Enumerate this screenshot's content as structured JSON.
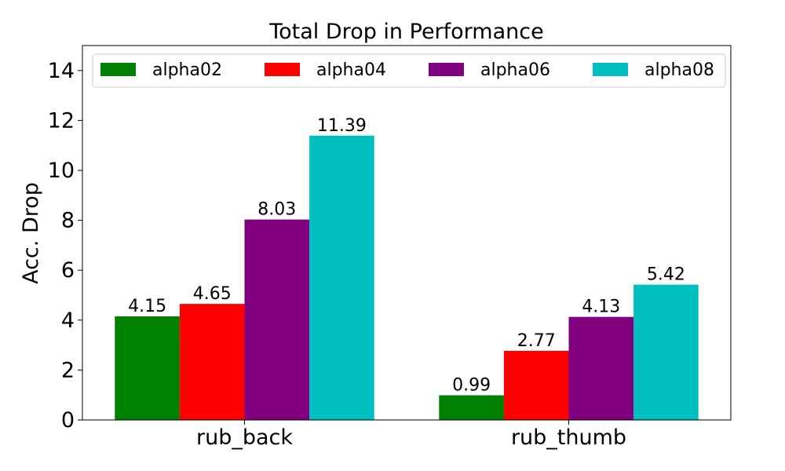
{
  "chart_data": {
    "type": "bar",
    "title": "Total Drop in Performance",
    "xlabel": "",
    "ylabel": "Acc. Drop",
    "categories": [
      "rub_back",
      "rub_thumb"
    ],
    "ylim": [
      0,
      15
    ],
    "yticks": [
      0,
      2,
      4,
      6,
      8,
      10,
      12,
      14
    ],
    "legend_position": "top",
    "grid": false,
    "series": [
      {
        "name": "alpha02",
        "color": "#008000",
        "values": [
          4.15,
          0.99
        ],
        "labels": [
          "4.15",
          "0.99"
        ]
      },
      {
        "name": "alpha04",
        "color": "#ff0000",
        "values": [
          4.65,
          2.77
        ],
        "labels": [
          "4.65",
          "2.77"
        ]
      },
      {
        "name": "alpha06",
        "color": "#800080",
        "values": [
          8.03,
          4.13
        ],
        "labels": [
          "8.03",
          "4.13"
        ]
      },
      {
        "name": "alpha08",
        "color": "#00bfbf",
        "values": [
          11.39,
          5.42
        ],
        "labels": [
          "11.39",
          "5.42"
        ]
      }
    ]
  }
}
